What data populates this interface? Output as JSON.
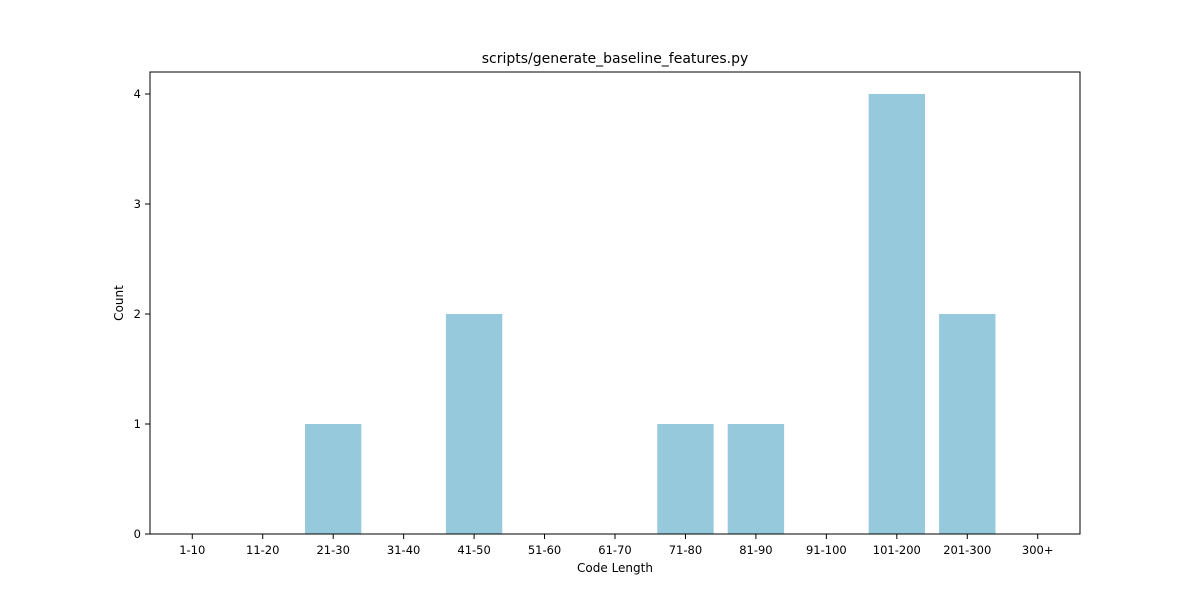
{
  "chart_data": {
    "type": "bar",
    "title": "scripts/generate_baseline_features.py",
    "xlabel": "Code Length",
    "ylabel": "Count",
    "categories": [
      "1-10",
      "11-20",
      "21-30",
      "31-40",
      "41-50",
      "51-60",
      "61-70",
      "71-80",
      "81-90",
      "91-100",
      "101-200",
      "201-300",
      "300+"
    ],
    "values": [
      0,
      0,
      1,
      0,
      2,
      0,
      0,
      1,
      1,
      0,
      4,
      2,
      0
    ],
    "ylim": [
      0,
      4.2
    ],
    "yticks": [
      0,
      1,
      2,
      3,
      4
    ],
    "grid": false,
    "bar_color": "#96c9dc"
  }
}
